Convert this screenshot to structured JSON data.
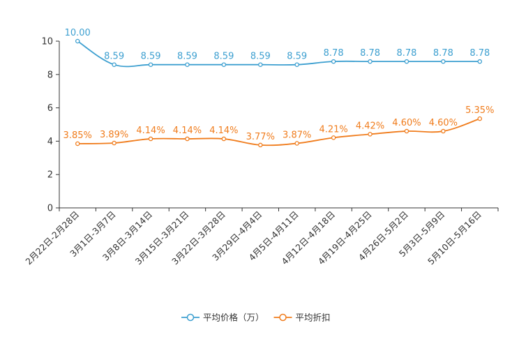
{
  "chart_data": {
    "type": "line",
    "title": "",
    "xlabel": "",
    "ylabel": "",
    "ylim": [
      0,
      10
    ],
    "yticks": [
      "0",
      "2",
      "4",
      "6",
      "8",
      "10"
    ],
    "grid": false,
    "legend_position": "bottom",
    "categories": [
      "2月22日-2月28日",
      "3月1日-3月7日",
      "3月8日-3月14日",
      "3月15日-3月21日",
      "3月22日-3月28日",
      "3月29日-4月4日",
      "4月5日-4月11日",
      "4月12日-4月18日",
      "4月19日-4月25日",
      "4月26日-5月2日",
      "5月3日-5月9日",
      "5月10日-5月16日"
    ],
    "series": [
      {
        "name": "平均价格（万）",
        "color": "#3c9fd0",
        "values": [
          10.0,
          8.59,
          8.59,
          8.59,
          8.59,
          8.59,
          8.59,
          8.78,
          8.78,
          8.78,
          8.78,
          8.78
        ],
        "labels": [
          "10.00",
          "8.59",
          "8.59",
          "8.59",
          "8.59",
          "8.59",
          "8.59",
          "8.78",
          "8.78",
          "8.78",
          "8.78",
          "8.78"
        ]
      },
      {
        "name": "平均折扣",
        "color": "#f07c1c",
        "values": [
          3.85,
          3.89,
          4.14,
          4.14,
          4.14,
          3.77,
          3.87,
          4.21,
          4.42,
          4.6,
          4.6,
          5.35
        ],
        "labels": [
          "3.85%",
          "3.89%",
          "4.14%",
          "4.14%",
          "4.14%",
          "3.77%",
          "3.87%",
          "4.21%",
          "4.42%",
          "4.60%",
          "4.60%",
          "5.35%"
        ]
      }
    ]
  }
}
